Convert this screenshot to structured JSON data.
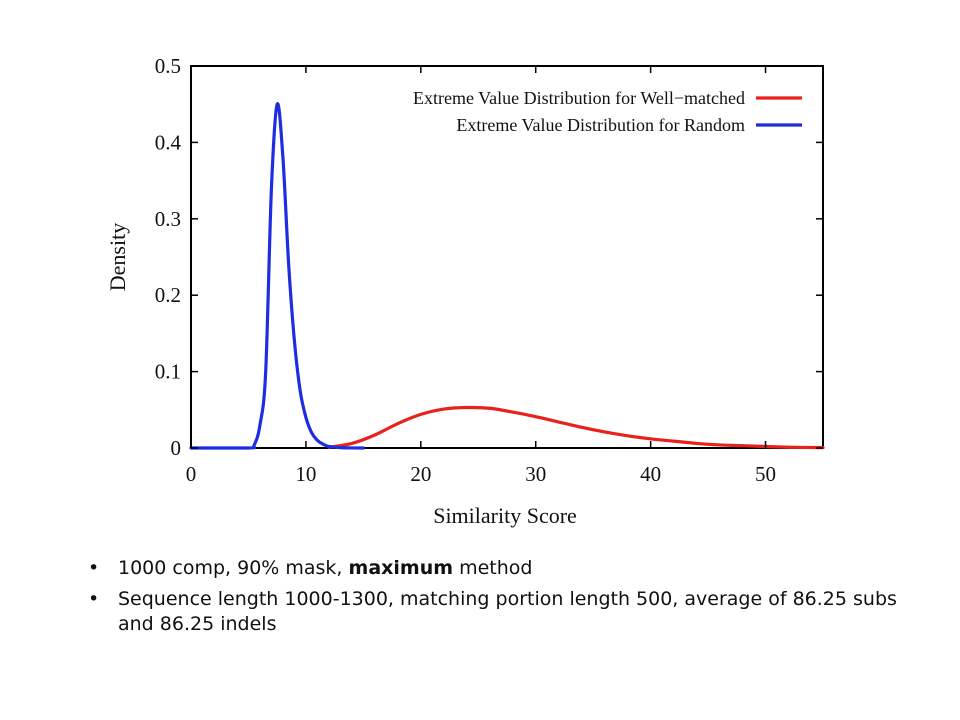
{
  "chart_data": {
    "type": "line",
    "xlabel": "Similarity Score",
    "ylabel": "Density",
    "xlim": [
      0,
      55
    ],
    "ylim": [
      0,
      0.5
    ],
    "xticks": [
      0,
      10,
      20,
      30,
      40,
      50
    ],
    "yticks": [
      0,
      0.1,
      0.2,
      0.3,
      0.4,
      0.5
    ],
    "xtick_labels": [
      "0",
      "10",
      "20",
      "30",
      "40",
      "50"
    ],
    "ytick_labels": [
      "0",
      "0.1",
      "0.2",
      "0.3",
      "0.4",
      "0.5"
    ],
    "legend_position": "top-right",
    "grid": false,
    "series": [
      {
        "name": "Extreme Value Distribution for Well−matched",
        "color": "#e8221b",
        "x": [
          12,
          14,
          16,
          18,
          20,
          22,
          24,
          26,
          28,
          30,
          32,
          34,
          36,
          38,
          40,
          42,
          44,
          46,
          48,
          50,
          52,
          55
        ],
        "y": [
          0.001,
          0.006,
          0.017,
          0.032,
          0.044,
          0.051,
          0.053,
          0.052,
          0.047,
          0.041,
          0.034,
          0.027,
          0.021,
          0.016,
          0.012,
          0.009,
          0.006,
          0.004,
          0.003,
          0.002,
          0.001,
          0.0005
        ]
      },
      {
        "name": "Extreme Value Distribution for Random",
        "color": "#1f2de0",
        "x": [
          0,
          5.0,
          5.5,
          6.0,
          6.5,
          7.0,
          7.5,
          8.0,
          8.5,
          9.0,
          9.5,
          10.0,
          10.5,
          11.0,
          11.5,
          12.0,
          13.0,
          14.0,
          15.0
        ],
        "y": [
          0,
          0.0,
          0.004,
          0.03,
          0.1,
          0.34,
          0.45,
          0.38,
          0.24,
          0.14,
          0.075,
          0.04,
          0.02,
          0.01,
          0.005,
          0.002,
          0.0005,
          0.0001,
          0.0
        ]
      }
    ]
  },
  "bullets": [
    {
      "pre": "1000 comp, 90% mask, ",
      "bold": "maximum",
      "post": " method"
    },
    {
      "pre": "Sequence length 1000-1300, matching portion length 500, average of 86.25 subs and 86.25 indels",
      "bold": "",
      "post": ""
    }
  ],
  "bullet_glyph": "•"
}
